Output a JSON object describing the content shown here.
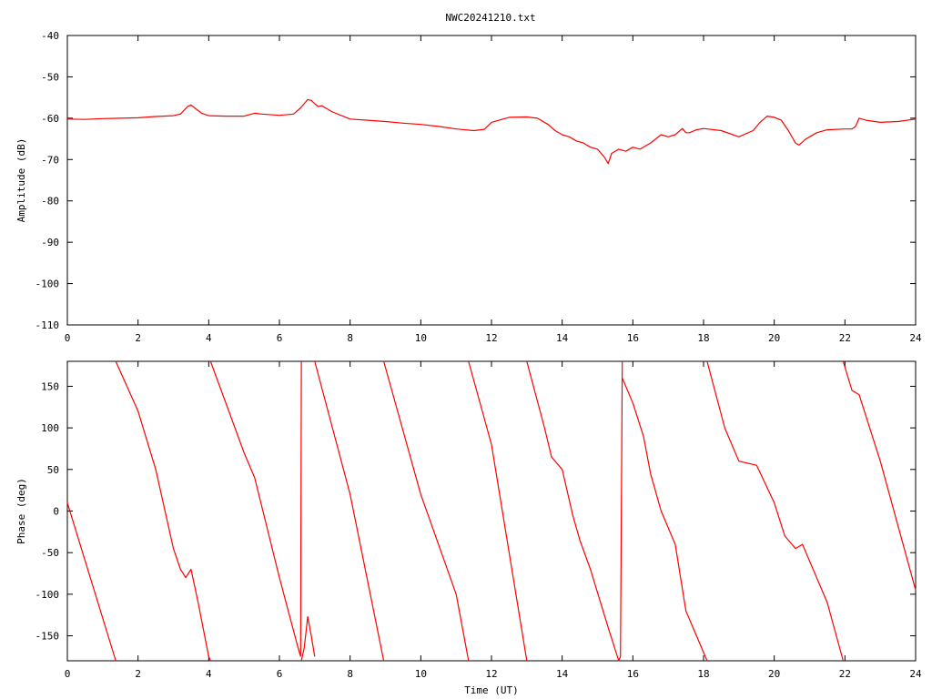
{
  "title": "NWC20241210.txt",
  "colors": {
    "trace": "#ff0000",
    "axes": "#000000",
    "background": "#ffffff"
  },
  "chart_data": [
    {
      "type": "line",
      "title": "NWC20241210.txt",
      "xlabel": "",
      "ylabel": "Amplitude (dB)",
      "xlim": [
        0,
        24
      ],
      "ylim": [
        -110,
        -40
      ],
      "xticks": [
        "0",
        "2",
        "4",
        "6",
        "8",
        "10",
        "12",
        "14",
        "16",
        "18",
        "20",
        "22",
        "24"
      ],
      "yticks": [
        "-40",
        "-50",
        "-60",
        "-70",
        "-80",
        "-90",
        "-100",
        "-110"
      ],
      "grid": false,
      "legend": "none",
      "series": [
        {
          "x": [
            0,
            0.5,
            1,
            1.5,
            2,
            2.5,
            3,
            3.2,
            3.4,
            3.5,
            3.6,
            3.8,
            4,
            4.5,
            5,
            5.3,
            5.5,
            6,
            6.4,
            6.6,
            6.8,
            6.9,
            7,
            7.1,
            7.2,
            7.3,
            7.5,
            8,
            8.5,
            9,
            9.5,
            10,
            10.5,
            11,
            11.5,
            11.8,
            12,
            12.5,
            13,
            13.3,
            13.6,
            13.8,
            14,
            14.2,
            14.4,
            14.6,
            14.8,
            15,
            15.2,
            15.3,
            15.4,
            15.6,
            15.8,
            16,
            16.2,
            16.5,
            16.8,
            17,
            17.2,
            17.4,
            17.5,
            17.6,
            17.8,
            18,
            18.5,
            19,
            19.4,
            19.6,
            19.8,
            20,
            20.2,
            20.4,
            20.6,
            20.7,
            20.9,
            21.2,
            21.5,
            22,
            22.2,
            22.3,
            22.4,
            22.6,
            23,
            23.5,
            24
          ],
          "y": [
            -60.2,
            -60.3,
            -60.1,
            -60.0,
            -59.9,
            -59.6,
            -59.4,
            -59.0,
            -57.2,
            -56.8,
            -57.5,
            -58.8,
            -59.4,
            -59.5,
            -59.5,
            -58.8,
            -59.0,
            -59.3,
            -59.0,
            -57.5,
            -55.5,
            -55.7,
            -56.5,
            -57.2,
            -57.0,
            -57.5,
            -58.5,
            -60.2,
            -60.5,
            -60.8,
            -61.2,
            -61.5,
            -62.0,
            -62.6,
            -63.0,
            -62.7,
            -61.0,
            -59.8,
            -59.7,
            -60.0,
            -61.5,
            -63.0,
            -64.0,
            -64.5,
            -65.5,
            -66.0,
            -67.0,
            -67.5,
            -69.5,
            -71.0,
            -68.5,
            -67.5,
            -68.0,
            -67.0,
            -67.5,
            -66.0,
            -64.0,
            -64.5,
            -64.0,
            -62.5,
            -63.5,
            -63.5,
            -62.8,
            -62.5,
            -63.0,
            -64.5,
            -63.0,
            -61.0,
            -59.5,
            -59.8,
            -60.5,
            -63.0,
            -66.0,
            -66.5,
            -65.0,
            -63.5,
            -62.8,
            -62.6,
            -62.6,
            -62.0,
            -60.0,
            -60.5,
            -61.0,
            -60.8,
            -60.2
          ]
        }
      ]
    },
    {
      "type": "line",
      "title": "",
      "xlabel": "Time (UT)",
      "ylabel": "Phase (deg)",
      "xlim": [
        0,
        24
      ],
      "ylim": [
        -180,
        180
      ],
      "xticks": [
        "0",
        "2",
        "4",
        "6",
        "8",
        "10",
        "12",
        "14",
        "16",
        "18",
        "20",
        "22",
        "24"
      ],
      "yticks": [
        "150",
        "100",
        "50",
        "0",
        "-50",
        "-100",
        "-150"
      ],
      "grid": false,
      "legend": "none",
      "series": [
        {
          "x": [
            0,
            1.37,
            null,
            1.37,
            2,
            2.5,
            3.0,
            3.2,
            3.35,
            3.5,
            3.7,
            4.0,
            4.05,
            null,
            4.05,
            5,
            5.3,
            6,
            6.5,
            6.6,
            null,
            6.6,
            6.62,
            null,
            6.62,
            6.7,
            6.8,
            6.9,
            7.0,
            null,
            7.0,
            8,
            8.95,
            null,
            8.95,
            10,
            11.0,
            11.35,
            null,
            11.35,
            12,
            13.0,
            null,
            13.0,
            13.5,
            13.7,
            14.0,
            14.3,
            14.5,
            14.8,
            15.3,
            15.6,
            15.65,
            null,
            15.65,
            15.7,
            null,
            15.7,
            16.0,
            16.3,
            16.5,
            16.8,
            17.2,
            17.5,
            18.1,
            null,
            18.1,
            18.6,
            19.0,
            19.5,
            20.0,
            20.3,
            20.6,
            20.8,
            21.5,
            21.95,
            null,
            21.95,
            22.2,
            22.4,
            23,
            24
          ],
          "y": [
            10,
            -180,
            null,
            180,
            120,
            50,
            -45,
            -70,
            -80,
            -70,
            -110,
            -175,
            -180,
            null,
            180,
            70,
            40,
            -80,
            -160,
            -175,
            null,
            -175,
            180,
            null,
            -180,
            -165,
            -127,
            -150,
            -175,
            null,
            180,
            20,
            -180,
            null,
            180,
            20,
            -100,
            -180,
            null,
            180,
            80,
            -180,
            null,
            180,
            100,
            65,
            50,
            -5,
            -35,
            -70,
            -140,
            -180,
            -175,
            null,
            -175,
            180,
            null,
            160,
            130,
            90,
            45,
            0,
            -40,
            -120,
            -180,
            null,
            180,
            100,
            60,
            55,
            10,
            -30,
            -45,
            -40,
            -110,
            -180,
            null,
            180,
            145,
            140,
            60,
            -95
          ]
        }
      ]
    }
  ]
}
